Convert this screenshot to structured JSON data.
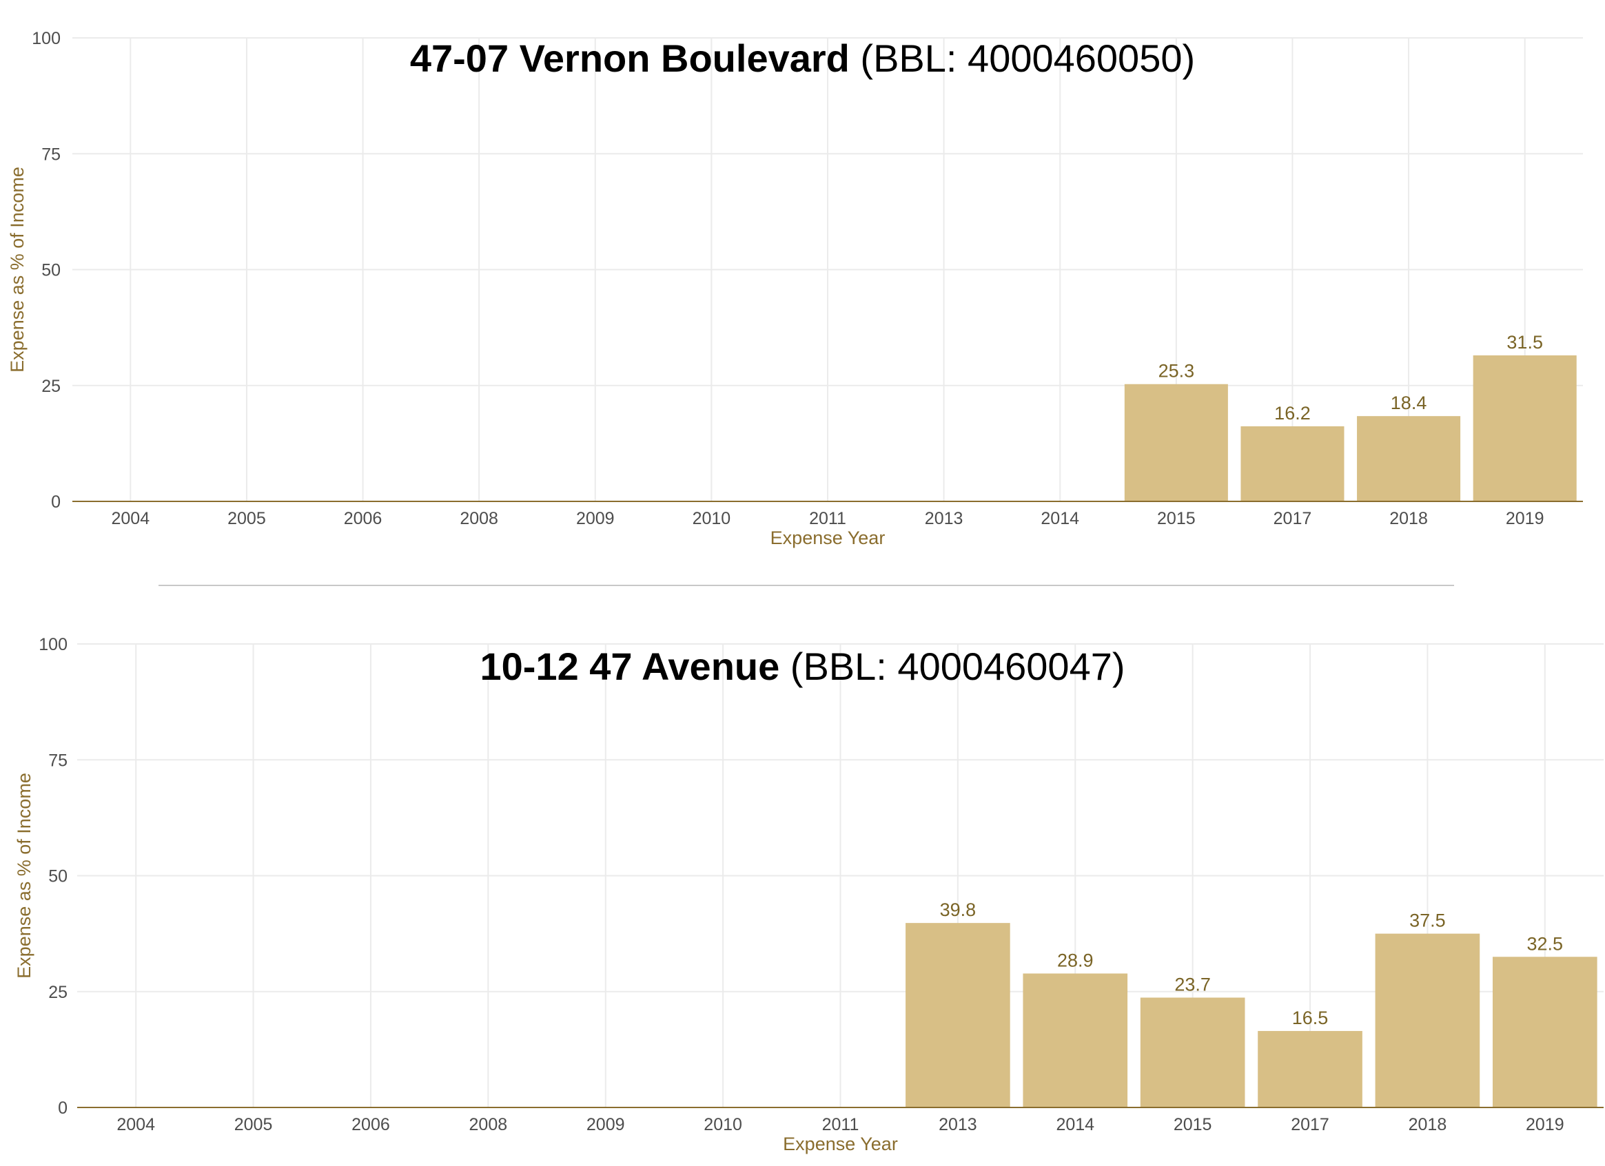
{
  "chart_data": [
    {
      "type": "bar",
      "title_bold": "47-07 Vernon Boulevard",
      "title_rest": " (BBL: 4000460050)",
      "xlabel": "Expense Year",
      "ylabel": "Expense as % of Income",
      "ylim": [
        0,
        100
      ],
      "yticks": [
        "0",
        "25",
        "50",
        "75",
        "100"
      ],
      "categories": [
        "2004",
        "2005",
        "2006",
        "2008",
        "2009",
        "2010",
        "2011",
        "2013",
        "2014",
        "2015",
        "2017",
        "2018",
        "2019"
      ],
      "values": [
        null,
        null,
        null,
        null,
        null,
        null,
        null,
        null,
        null,
        25.3,
        16.2,
        18.4,
        31.5
      ],
      "labels": [
        "",
        "",
        "",
        "",
        "",
        "",
        "",
        "",
        "",
        "25.3",
        "16.2",
        "18.4",
        "31.5"
      ],
      "grid": true,
      "bar_color": "#d8bf86",
      "label_color": "#7a6426",
      "axis_color": "#8a6d2e"
    },
    {
      "type": "bar",
      "title_bold": "10-12 47 Avenue",
      "title_rest": " (BBL: 4000460047)",
      "xlabel": "Expense Year",
      "ylabel": "Expense as % of Income",
      "ylim": [
        0,
        100
      ],
      "yticks": [
        "0",
        "25",
        "50",
        "75",
        "100"
      ],
      "categories": [
        "2004",
        "2005",
        "2006",
        "2008",
        "2009",
        "2010",
        "2011",
        "2013",
        "2014",
        "2015",
        "2017",
        "2018",
        "2019"
      ],
      "values": [
        null,
        null,
        null,
        null,
        null,
        null,
        null,
        39.8,
        28.9,
        23.7,
        16.5,
        37.5,
        32.5
      ],
      "labels": [
        "",
        "",
        "",
        "",
        "",
        "",
        "",
        "39.8",
        "28.9",
        "23.7",
        "16.5",
        "37.5",
        "32.5"
      ],
      "grid": true,
      "bar_color": "#d8bf86",
      "label_color": "#7a6426",
      "axis_color": "#8a6d2e"
    }
  ]
}
